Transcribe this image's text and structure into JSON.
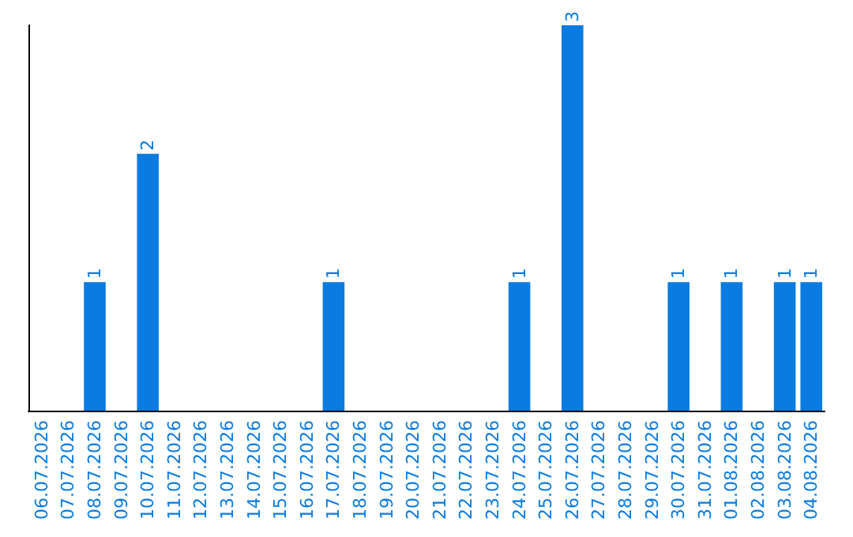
{
  "chart_data": {
    "type": "bar",
    "categories": [
      "06.07.2026",
      "07.07.2026",
      "08.07.2026",
      "09.07.2026",
      "10.07.2026",
      "11.07.2026",
      "12.07.2026",
      "13.07.2026",
      "14.07.2026",
      "15.07.2026",
      "16.07.2026",
      "17.07.2026",
      "18.07.2026",
      "19.07.2026",
      "20.07.2026",
      "21.07.2026",
      "22.07.2026",
      "23.07.2026",
      "24.07.2026",
      "25.07.2026",
      "26.07.2026",
      "27.07.2026",
      "28.07.2026",
      "29.07.2026",
      "30.07.2026",
      "31.07.2026",
      "01.08.2026",
      "02.08.2026",
      "03.08.2026",
      "04.08.2026"
    ],
    "values": [
      0,
      0,
      1,
      0,
      2,
      0,
      0,
      0,
      0,
      0,
      0,
      1,
      0,
      0,
      0,
      0,
      0,
      0,
      1,
      0,
      3,
      0,
      0,
      0,
      1,
      0,
      1,
      0,
      1,
      1
    ],
    "value_labels": [
      null,
      null,
      "1",
      null,
      "2",
      null,
      null,
      null,
      null,
      null,
      null,
      "1",
      null,
      null,
      null,
      null,
      null,
      null,
      "1",
      null,
      "3",
      null,
      null,
      null,
      "1",
      null,
      "1",
      null,
      "1",
      "1"
    ],
    "color": "#0a7be0",
    "grid": false,
    "tick_labels": "x"
  }
}
